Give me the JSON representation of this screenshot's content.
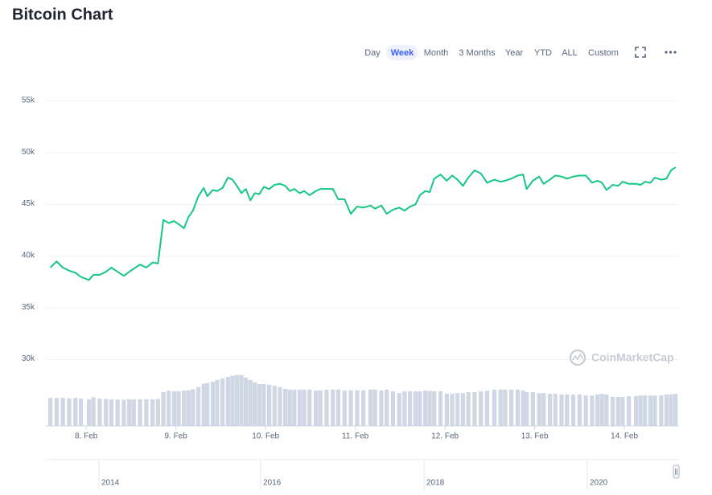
{
  "title": "Bitcoin Chart",
  "range_buttons": [
    "Day",
    "Week",
    "Month",
    "3 Months",
    "Year",
    "YTD",
    "ALL",
    "Custom"
  ],
  "active_range_index": 1,
  "watermark": "CoinMarketCap",
  "navigator_years": [
    "2014",
    "2016",
    "2018",
    "2020"
  ],
  "chart_data": {
    "type": "line",
    "x": [
      7.6,
      7.67,
      7.74,
      7.81,
      7.88,
      7.94,
      8.03,
      8.08,
      8.15,
      8.22,
      8.28,
      8.35,
      8.42,
      8.48,
      8.53,
      8.6,
      8.67,
      8.74,
      8.8,
      8.86,
      8.92,
      8.98,
      9.03,
      9.09,
      9.14,
      9.19,
      9.25,
      9.31,
      9.35,
      9.41,
      9.46,
      9.52,
      9.58,
      9.63,
      9.68,
      9.73,
      9.78,
      9.83,
      9.88,
      9.93,
      9.98,
      10.04,
      10.1,
      10.16,
      10.22,
      10.27,
      10.32,
      10.38,
      10.43,
      10.49,
      10.56,
      10.61,
      10.68,
      10.75,
      10.81,
      10.88,
      10.95,
      11.02,
      11.09,
      11.17,
      11.22,
      11.29,
      11.35,
      11.42,
      11.49,
      11.55,
      11.61,
      11.67,
      11.72,
      11.78,
      11.83,
      11.88,
      11.95,
      12.02,
      12.08,
      12.14,
      12.2,
      12.26,
      12.33,
      12.4,
      12.47,
      12.55,
      12.62,
      12.67,
      12.74,
      12.81,
      12.87,
      12.91,
      12.98,
      13.05,
      13.1,
      13.17,
      13.23,
      13.3,
      13.36,
      13.43,
      13.5,
      13.57,
      13.64,
      13.7,
      13.75,
      13.8,
      13.87,
      13.93,
      13.98,
      14.05,
      14.13,
      14.18,
      14.23,
      14.29,
      14.34,
      14.41,
      14.47,
      14.52,
      14.57
    ],
    "series": [
      {
        "color": "#16c784",
        "values": [
          38900,
          39500,
          38900,
          38600,
          38400,
          38000,
          37700,
          38200,
          38200,
          38500,
          38900,
          38500,
          38100,
          38500,
          38800,
          39200,
          38900,
          39400,
          39300,
          43500,
          43200,
          43400,
          43100,
          42700,
          43800,
          44400,
          45800,
          46600,
          45800,
          46400,
          46300,
          46600,
          47600,
          47400,
          46800,
          46100,
          46500,
          45400,
          46100,
          46000,
          46700,
          46500,
          46900,
          47000,
          46800,
          46300,
          46500,
          46100,
          46300,
          45900,
          46300,
          46500,
          46500,
          46500,
          45500,
          45500,
          44100,
          44800,
          44700,
          44900,
          44600,
          44900,
          44100,
          44500,
          44700,
          44400,
          44800,
          45000,
          45900,
          46300,
          46200,
          47500,
          47900,
          47300,
          47800,
          47400,
          46800,
          47600,
          48300,
          48000,
          47100,
          47400,
          47200,
          47300,
          47500,
          47800,
          47900,
          46500,
          47300,
          47700,
          47000,
          47400,
          47800,
          47700,
          47500,
          47700,
          47800,
          47800,
          47100,
          47300,
          47100,
          46400,
          46900,
          46800,
          47200,
          47000,
          47000,
          46900,
          47200,
          47100,
          47600,
          47400,
          47500,
          48300,
          48600
        ]
      },
      {
        "color": "#cfd6e4",
        "type": "bar",
        "axis": "y2",
        "values": [
          8.1,
          8.1,
          8.1,
          8.0,
          8.1,
          7.9,
          7.7,
          8.3,
          7.9,
          7.8,
          7.7,
          7.6,
          7.6,
          7.7,
          7.7,
          7.7,
          7.7,
          7.7,
          7.8,
          9.8,
          10.2,
          10.0,
          10.0,
          10.2,
          10.3,
          10.6,
          11.2,
          12.2,
          12.4,
          12.8,
          13.3,
          13.7,
          14.2,
          14.5,
          14.7,
          14.7,
          14.0,
          13.3,
          12.6,
          12.1,
          12.1,
          11.9,
          11.6,
          11.2,
          10.7,
          10.5,
          10.5,
          10.5,
          10.5,
          10.5,
          10.2,
          10.3,
          10.5,
          10.5,
          10.5,
          10.2,
          10.3,
          10.3,
          10.3,
          10.5,
          10.5,
          10.3,
          10.5,
          10.0,
          9.5,
          10.0,
          10.0,
          10.0,
          10.0,
          10.2,
          10.2,
          10.0,
          10.0,
          9.3,
          9.3,
          9.5,
          9.5,
          9.8,
          9.8,
          10.0,
          10.2,
          10.5,
          10.5,
          10.5,
          10.5,
          10.5,
          10.2,
          9.8,
          9.8,
          9.5,
          9.5,
          9.3,
          9.3,
          9.1,
          9.1,
          9.1,
          9.1,
          8.8,
          8.8,
          9.1,
          9.3,
          9.1,
          8.4,
          8.4,
          8.4,
          8.6,
          8.6,
          8.8,
          8.8,
          8.8,
          8.8,
          8.8,
          9.1,
          9.1,
          9.3
        ]
      }
    ],
    "xlim": [
      7.55,
      14.6
    ],
    "xticks": [
      {
        "value": 8,
        "label": "8. Feb"
      },
      {
        "value": 9,
        "label": "9. Feb"
      },
      {
        "value": 10,
        "label": "10. Feb"
      },
      {
        "value": 11,
        "label": "11. Feb"
      },
      {
        "value": 12,
        "label": "12. Feb"
      },
      {
        "value": 13,
        "label": "13. Feb"
      },
      {
        "value": 14,
        "label": "14. Feb"
      }
    ],
    "ylim": [
      23600,
      57000
    ],
    "yticks": [
      {
        "value": 30000,
        "label": "30k"
      },
      {
        "value": 35000,
        "label": "35k"
      },
      {
        "value": 40000,
        "label": "40k"
      },
      {
        "value": 45000,
        "label": "45k"
      },
      {
        "value": 50000,
        "label": "50k"
      },
      {
        "value": 55000,
        "label": "55k"
      }
    ],
    "y2lim": [
      0,
      100
    ],
    "grid": true
  }
}
